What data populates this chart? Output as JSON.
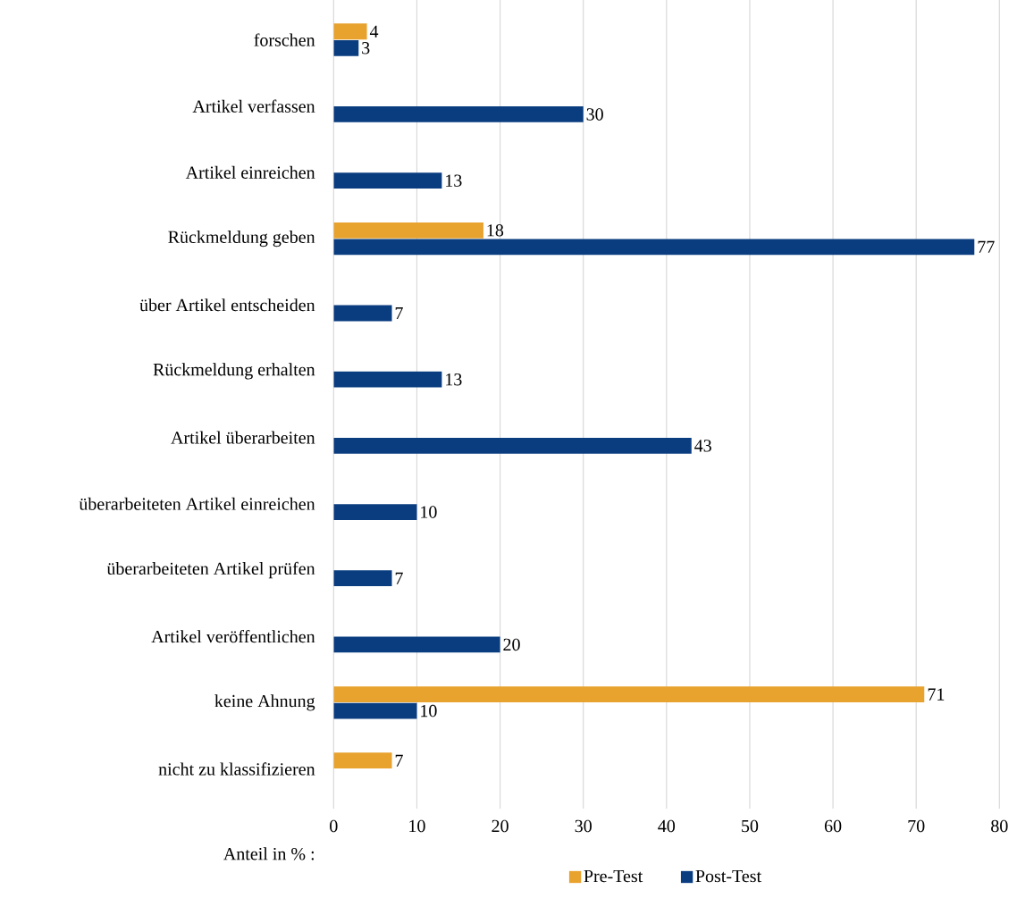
{
  "chart_data": {
    "type": "bar",
    "orientation": "horizontal",
    "xlabel": "Anteil in % :",
    "categories": [
      "forschen",
      "Artikel verfassen",
      "Artikel einreichen",
      "Rückmeldung geben",
      "über Artikel entscheiden",
      "Rückmeldung erhalten",
      "Artikel überarbeiten",
      "überarbeiteten Artikel einreichen",
      "überarbeiteten Artikel prüfen",
      "Artikel veröffentlichen",
      "keine Ahnung",
      "nicht zu klassifizieren"
    ],
    "series": [
      {
        "name": "Pre-Test",
        "color": "#e8a22e",
        "values": [
          4,
          null,
          null,
          18,
          null,
          null,
          null,
          null,
          null,
          null,
          71,
          7
        ]
      },
      {
        "name": "Post-Test",
        "color": "#0a3d80",
        "values": [
          3,
          30,
          13,
          77,
          7,
          13,
          43,
          10,
          7,
          20,
          10,
          null
        ]
      }
    ],
    "xlim": [
      0,
      80
    ],
    "xticks": [
      0,
      10,
      20,
      30,
      40,
      50,
      60,
      70,
      80
    ],
    "grid": "x",
    "legend": "bottom",
    "data_labels": true
  }
}
